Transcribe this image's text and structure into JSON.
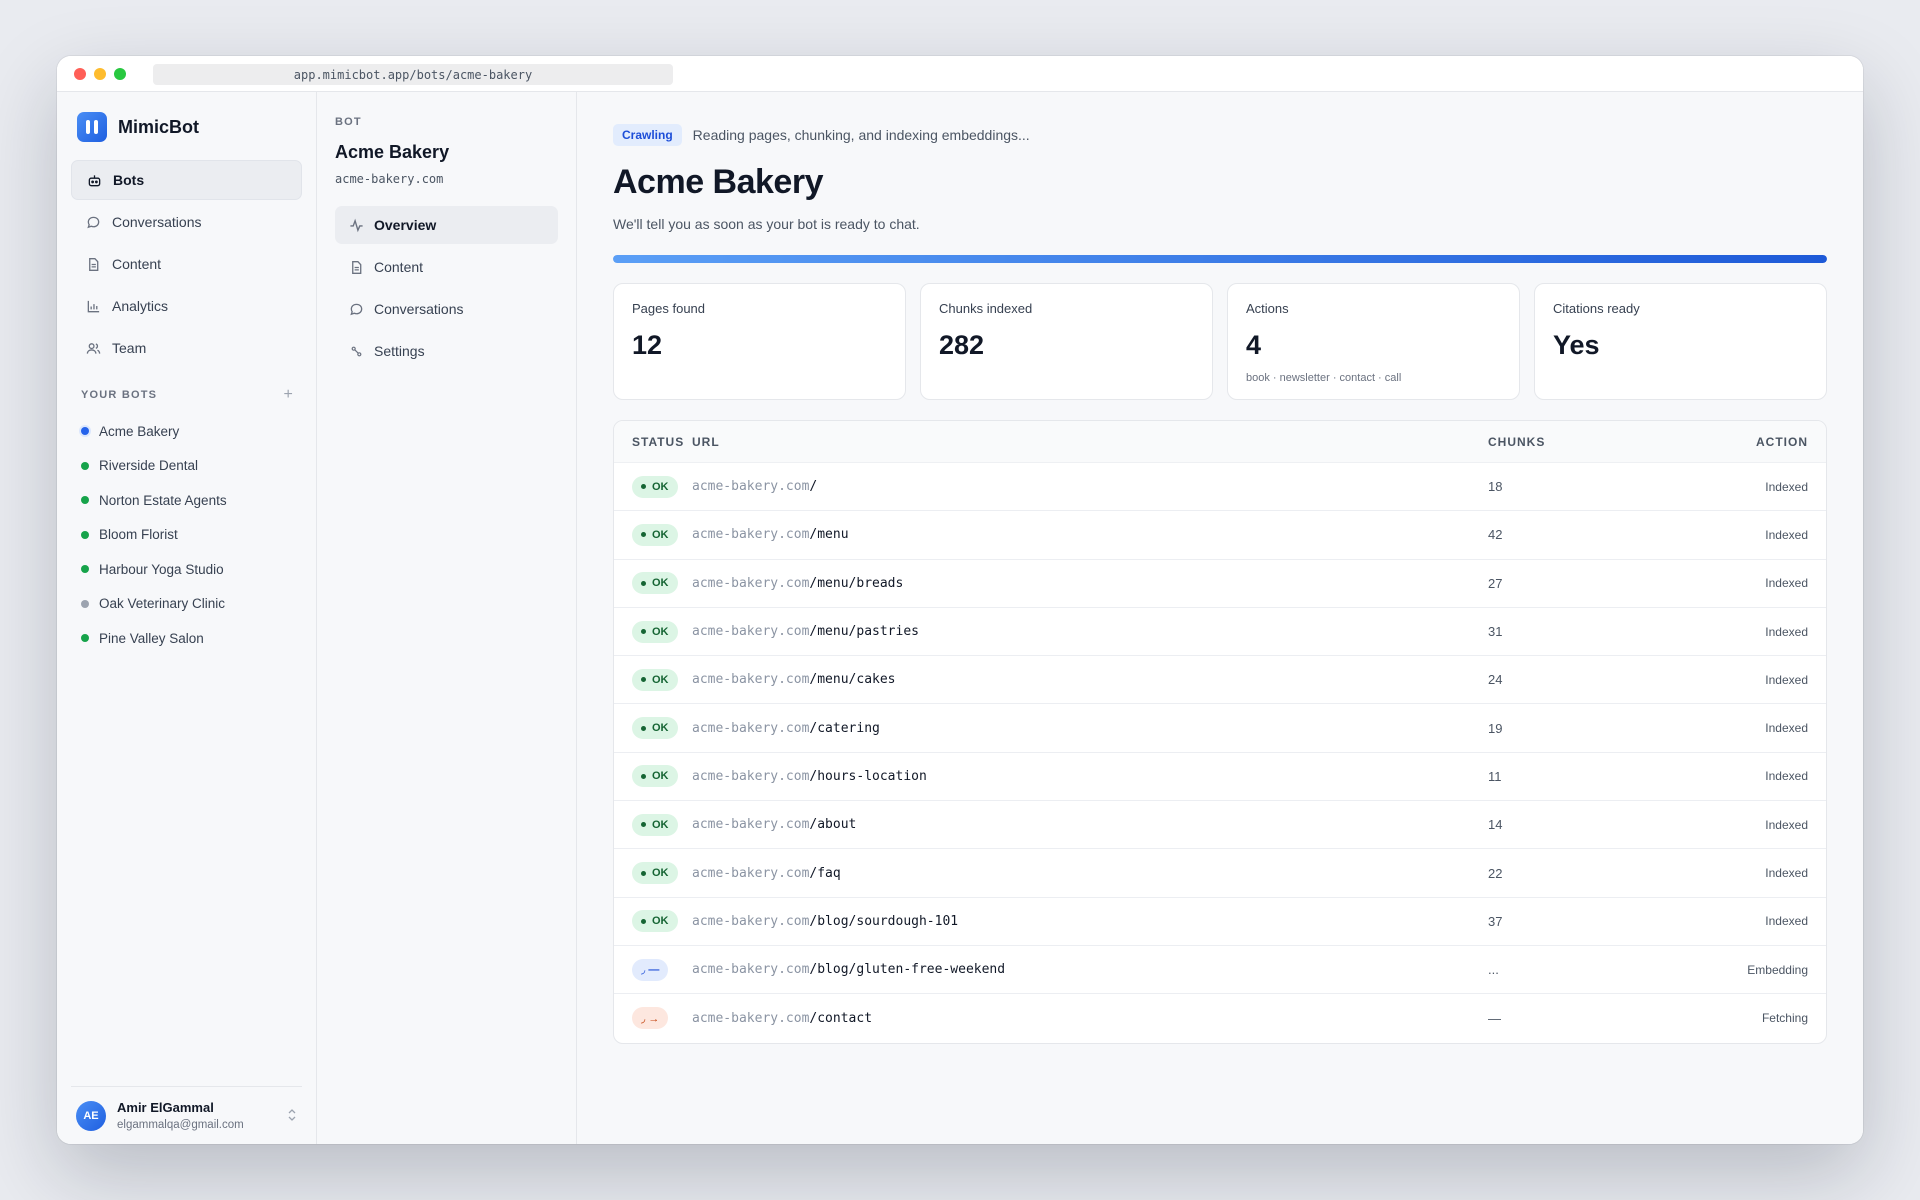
{
  "window": {
    "url": "app.mimicbot.app/bots/acme-bakery",
    "traffic_lights": [
      "#ff5f57",
      "#febc2e",
      "#28c840"
    ]
  },
  "brand": {
    "name": "MimicBot",
    "accent": "#2563eb"
  },
  "sidebar": {
    "nav": [
      {
        "label": "Bots",
        "icon": "bot-icon",
        "active": true
      },
      {
        "label": "Conversations",
        "icon": "chat-bubble-icon",
        "active": false
      },
      {
        "label": "Content",
        "icon": "document-icon",
        "active": false
      },
      {
        "label": "Analytics",
        "icon": "bar-chart-icon",
        "active": false
      },
      {
        "label": "Team",
        "icon": "users-icon",
        "active": false
      }
    ],
    "section_title": "YOUR BOTS",
    "add_symbol": "+",
    "bots": [
      {
        "name": "Acme Bakery",
        "dot_color": "#2563eb",
        "selected": true
      },
      {
        "name": "Riverside Dental",
        "dot_color": "#16a34a"
      },
      {
        "name": "Norton Estate Agents",
        "dot_color": "#16a34a"
      },
      {
        "name": "Bloom Florist",
        "dot_color": "#16a34a"
      },
      {
        "name": "Harbour Yoga Studio",
        "dot_color": "#16a34a"
      },
      {
        "name": "Oak Veterinary Clinic",
        "dot_color": "#9ca3af"
      },
      {
        "name": "Pine Valley Salon",
        "dot_color": "#16a34a"
      }
    ],
    "user": {
      "initials": "AE",
      "name": "Amir ElGammal",
      "email": "elgammalqa@gmail.com"
    }
  },
  "bot_panel": {
    "label": "BOT",
    "title": "Acme Bakery",
    "domain": "acme-bakery.com",
    "nav": [
      {
        "label": "Overview",
        "icon": "activity-icon",
        "active": true
      },
      {
        "label": "Content",
        "icon": "document-icon",
        "active": false
      },
      {
        "label": "Conversations",
        "icon": "chat-bubble-icon",
        "active": false
      },
      {
        "label": "Settings",
        "icon": "gear-icon",
        "active": false
      }
    ]
  },
  "main": {
    "status_pill": "Crawling",
    "status_text": "Reading pages, chunking, and indexing embeddings...",
    "title": "Acme Bakery",
    "subtitle": "We'll tell you as soon as your bot is ready to chat.",
    "progress_fraction": 1.0,
    "stats": [
      {
        "label": "Pages found",
        "value": "12",
        "note": ""
      },
      {
        "label": "Chunks indexed",
        "value": "282",
        "note": ""
      },
      {
        "label": "Actions",
        "value": "4",
        "note": "book · newsletter · contact · call"
      },
      {
        "label": "Citations ready",
        "value": "Yes",
        "note": ""
      }
    ],
    "table": {
      "headers": {
        "status": "STATUS",
        "url": "URL",
        "chunks": "CHUNKS",
        "action": "ACTION"
      },
      "rows": [
        {
          "status": "OK",
          "kind": "ok",
          "domain": "acme-bakery.com",
          "path": "/",
          "chunks": "18",
          "action": "Indexed"
        },
        {
          "status": "OK",
          "kind": "ok",
          "domain": "acme-bakery.com",
          "path": "/menu",
          "chunks": "42",
          "action": "Indexed"
        },
        {
          "status": "OK",
          "kind": "ok",
          "domain": "acme-bakery.com",
          "path": "/menu/breads",
          "chunks": "27",
          "action": "Indexed"
        },
        {
          "status": "OK",
          "kind": "ok",
          "domain": "acme-bakery.com",
          "path": "/menu/pastries",
          "chunks": "31",
          "action": "Indexed"
        },
        {
          "status": "OK",
          "kind": "ok",
          "domain": "acme-bakery.com",
          "path": "/menu/cakes",
          "chunks": "24",
          "action": "Indexed"
        },
        {
          "status": "OK",
          "kind": "ok",
          "domain": "acme-bakery.com",
          "path": "/catering",
          "chunks": "19",
          "action": "Indexed"
        },
        {
          "status": "OK",
          "kind": "ok",
          "domain": "acme-bakery.com",
          "path": "/hours-location",
          "chunks": "11",
          "action": "Indexed"
        },
        {
          "status": "OK",
          "kind": "ok",
          "domain": "acme-bakery.com",
          "path": "/about",
          "chunks": "14",
          "action": "Indexed"
        },
        {
          "status": "OK",
          "kind": "ok",
          "domain": "acme-bakery.com",
          "path": "/faq",
          "chunks": "22",
          "action": "Indexed"
        },
        {
          "status": "OK",
          "kind": "ok",
          "domain": "acme-bakery.com",
          "path": "/blog/sourdough-101",
          "chunks": "37",
          "action": "Indexed"
        },
        {
          "status": "◞ —",
          "kind": "emb",
          "domain": "acme-bakery.com",
          "path": "/blog/gluten-free-weekend",
          "chunks": "...",
          "action": "Embedding"
        },
        {
          "status": "◞ →",
          "kind": "fet",
          "domain": "acme-bakery.com",
          "path": "/contact",
          "chunks": "—",
          "action": "Fetching"
        }
      ]
    }
  }
}
